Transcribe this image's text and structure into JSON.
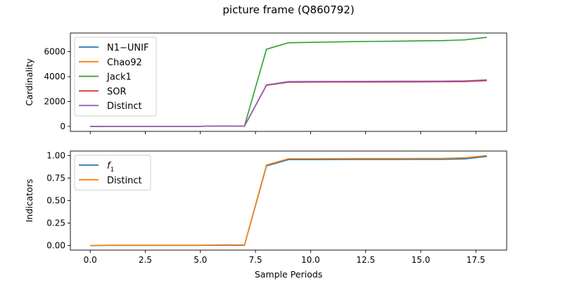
{
  "title": "picture frame (Q860792)",
  "chart_data": [
    {
      "type": "line",
      "xlabel": "",
      "ylabel": "Cardinality",
      "xlim": [
        -0.9,
        18.9
      ],
      "ylim": [
        -400,
        7500
      ],
      "yticks": [
        0,
        2000,
        4000,
        6000
      ],
      "ytick_labels": [
        "0",
        "2000",
        "4000",
        "6000"
      ],
      "grid": false,
      "legend_position": "top-left",
      "x": [
        0,
        1,
        2,
        3,
        4,
        5,
        6,
        7,
        8,
        9,
        10,
        11,
        12,
        13,
        14,
        15,
        16,
        17,
        18
      ],
      "series": [
        {
          "name": "N1−UNIF",
          "color": "#1f77b4",
          "values": [
            0,
            5,
            5,
            5,
            5,
            5,
            30,
            20,
            3320,
            3560,
            3570,
            3575,
            3580,
            3580,
            3585,
            3590,
            3595,
            3610,
            3690
          ]
        },
        {
          "name": "Chao92",
          "color": "#ff7f0e",
          "values": [
            0,
            5,
            5,
            5,
            5,
            5,
            30,
            20,
            3330,
            3570,
            3580,
            3585,
            3590,
            3590,
            3595,
            3600,
            3605,
            3620,
            3700
          ]
        },
        {
          "name": "Jack1",
          "color": "#2ca02c",
          "values": [
            0,
            5,
            5,
            5,
            5,
            5,
            40,
            30,
            6200,
            6720,
            6750,
            6780,
            6810,
            6830,
            6850,
            6870,
            6890,
            6950,
            7160
          ]
        },
        {
          "name": "SOR",
          "color": "#d62728",
          "values": [
            0,
            5,
            5,
            5,
            5,
            5,
            30,
            20,
            3300,
            3550,
            3560,
            3565,
            3570,
            3570,
            3575,
            3580,
            3585,
            3600,
            3680
          ]
        },
        {
          "name": "Distinct",
          "color": "#9467bd",
          "values": [
            0,
            5,
            5,
            5,
            5,
            5,
            35,
            25,
            3340,
            3600,
            3610,
            3615,
            3620,
            3625,
            3630,
            3635,
            3640,
            3660,
            3740
          ]
        }
      ]
    },
    {
      "type": "line",
      "xlabel": "Sample Periods",
      "ylabel": "Indicators",
      "xlim": [
        -0.9,
        18.9
      ],
      "ylim": [
        -0.05,
        1.05
      ],
      "xticks": [
        0,
        2.5,
        5,
        7.5,
        10,
        12.5,
        15,
        17.5
      ],
      "xtick_labels": [
        "0.0",
        "2.5",
        "5.0",
        "7.5",
        "10.0",
        "12.5",
        "15.0",
        "17.5"
      ],
      "yticks": [
        0,
        0.25,
        0.5,
        0.75,
        1.0
      ],
      "ytick_labels": [
        "0.00",
        "0.25",
        "0.50",
        "0.75",
        "1.00"
      ],
      "grid": false,
      "legend_position": "top-left",
      "x": [
        0,
        1,
        2,
        3,
        4,
        5,
        6,
        7,
        8,
        9,
        10,
        11,
        12,
        13,
        14,
        15,
        16,
        17,
        18
      ],
      "series": [
        {
          "name": "f1",
          "color": "#1f77b4",
          "values": [
            0.0,
            0.002,
            0.002,
            0.002,
            0.002,
            0.002,
            0.004,
            0.003,
            0.885,
            0.955,
            0.955,
            0.956,
            0.957,
            0.957,
            0.957,
            0.958,
            0.958,
            0.963,
            0.99
          ]
        },
        {
          "name": "Distinct",
          "color": "#ff7f0e",
          "values": [
            0.0,
            0.004,
            0.004,
            0.004,
            0.004,
            0.004,
            0.008,
            0.007,
            0.895,
            0.965,
            0.965,
            0.966,
            0.967,
            0.967,
            0.967,
            0.968,
            0.968,
            0.975,
            1.0
          ]
        }
      ]
    }
  ]
}
